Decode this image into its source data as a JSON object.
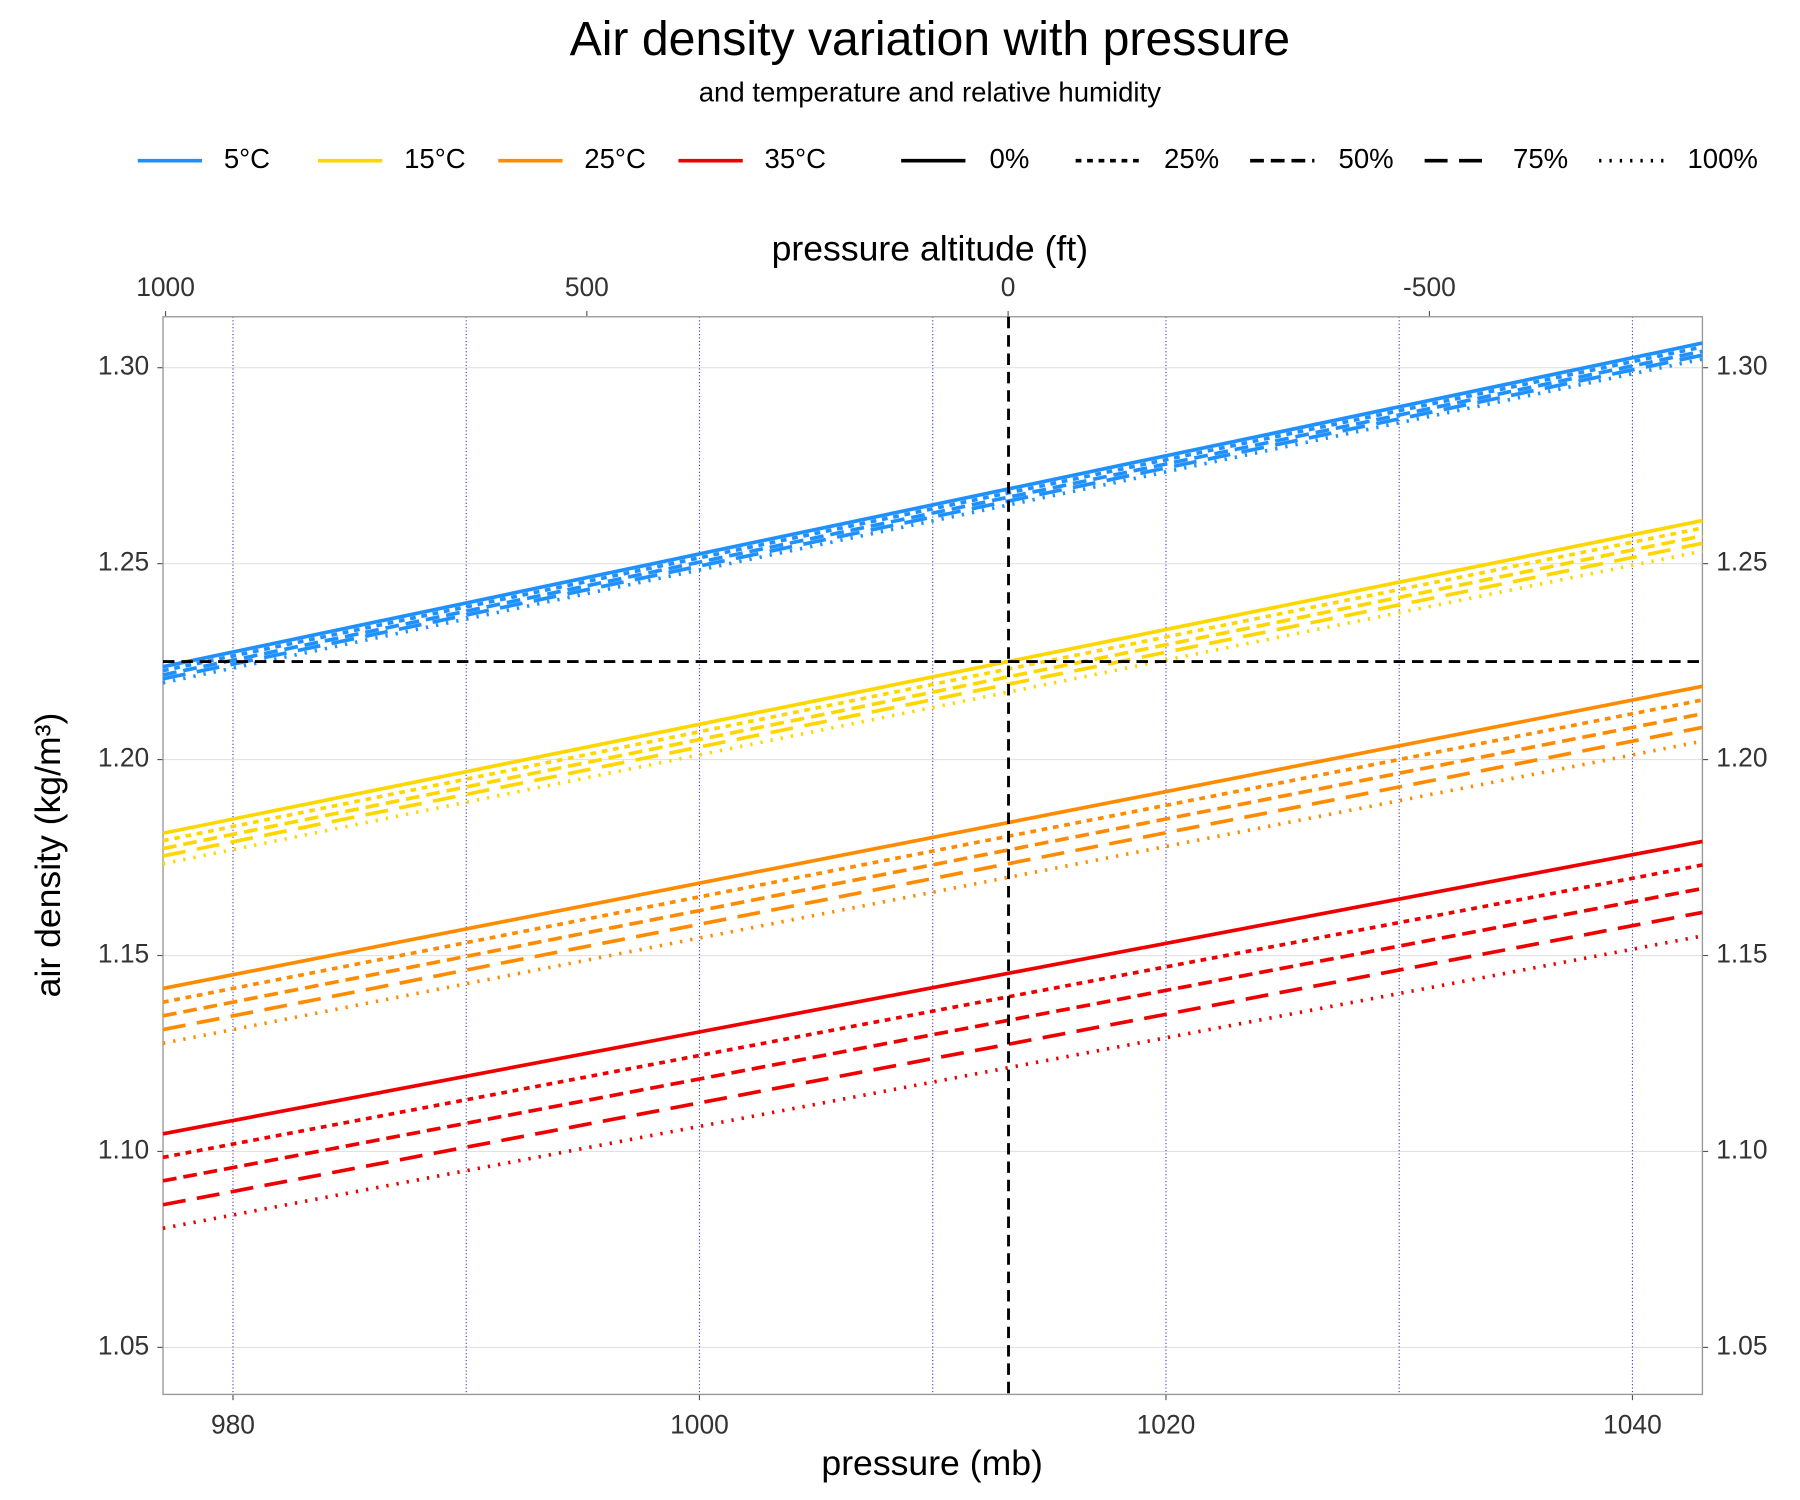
{
  "chart_data": {
    "type": "line",
    "title": "Air density variation with pressure",
    "subtitle": "and temperature and relative humidity",
    "x_label": "pressure (mb)",
    "y_label": "air density  (kg/m³)",
    "x2_label": "pressure altitude (ft)",
    "x": [
      977,
      1043
    ],
    "xlim": [
      977,
      1043
    ],
    "xticks": [
      980,
      1000,
      1020,
      1040
    ],
    "xgrid": [
      980,
      990,
      1000,
      1010,
      1020,
      1030,
      1040
    ],
    "xgrid_color": "#3b3bd6",
    "x2lim": [
      1003,
      -824
    ],
    "x2ticks": [
      1000,
      500,
      0,
      -500
    ],
    "ylim": [
      1.038,
      1.313
    ],
    "yticks": [
      {
        "value": 1.05,
        "label": "1.05"
      },
      {
        "value": 1.1,
        "label": "1.10"
      },
      {
        "value": 1.15,
        "label": "1.15"
      },
      {
        "value": 1.2,
        "label": "1.20"
      },
      {
        "value": 1.25,
        "label": "1.25"
      },
      {
        "value": 1.3,
        "label": "1.30"
      }
    ],
    "grid": true,
    "reference_lines": {
      "x": 1013.25,
      "y": 1.225
    },
    "humidity": [
      {
        "name": "0%",
        "dash": "none"
      },
      {
        "name": "25%",
        "dash": "5 5"
      },
      {
        "name": "50%",
        "dash": "12 6"
      },
      {
        "name": "75%",
        "dash": "20 10"
      },
      {
        "name": "100%",
        "dash": "2 7"
      }
    ],
    "series": [
      {
        "name": "5°C",
        "color": "#1E90FF",
        "values": [
          [
            1.2237,
            1.3063
          ],
          [
            1.2227,
            1.3053
          ],
          [
            1.2216,
            1.3042
          ],
          [
            1.2206,
            1.3032
          ],
          [
            1.2196,
            1.3022
          ]
        ]
      },
      {
        "name": "15°C",
        "color": "#FFD700",
        "values": [
          [
            1.1812,
            1.261
          ],
          [
            1.1793,
            1.2591
          ],
          [
            1.1773,
            1.2571
          ],
          [
            1.1754,
            1.2552
          ],
          [
            1.1734,
            1.2532
          ]
        ]
      },
      {
        "name": "25°C",
        "color": "#FF8C00",
        "values": [
          [
            1.1416,
            1.2187
          ],
          [
            1.1381,
            1.2152
          ],
          [
            1.1346,
            1.2117
          ],
          [
            1.1311,
            1.2082
          ],
          [
            1.1276,
            1.2047
          ]
        ]
      },
      {
        "name": "35°C",
        "color": "#EE0000",
        "values": [
          [
            1.1045,
            1.1791
          ],
          [
            1.0985,
            1.1731
          ],
          [
            1.0925,
            1.1671
          ],
          [
            1.0864,
            1.161
          ],
          [
            1.0804,
            1.155
          ]
        ]
      }
    ]
  }
}
